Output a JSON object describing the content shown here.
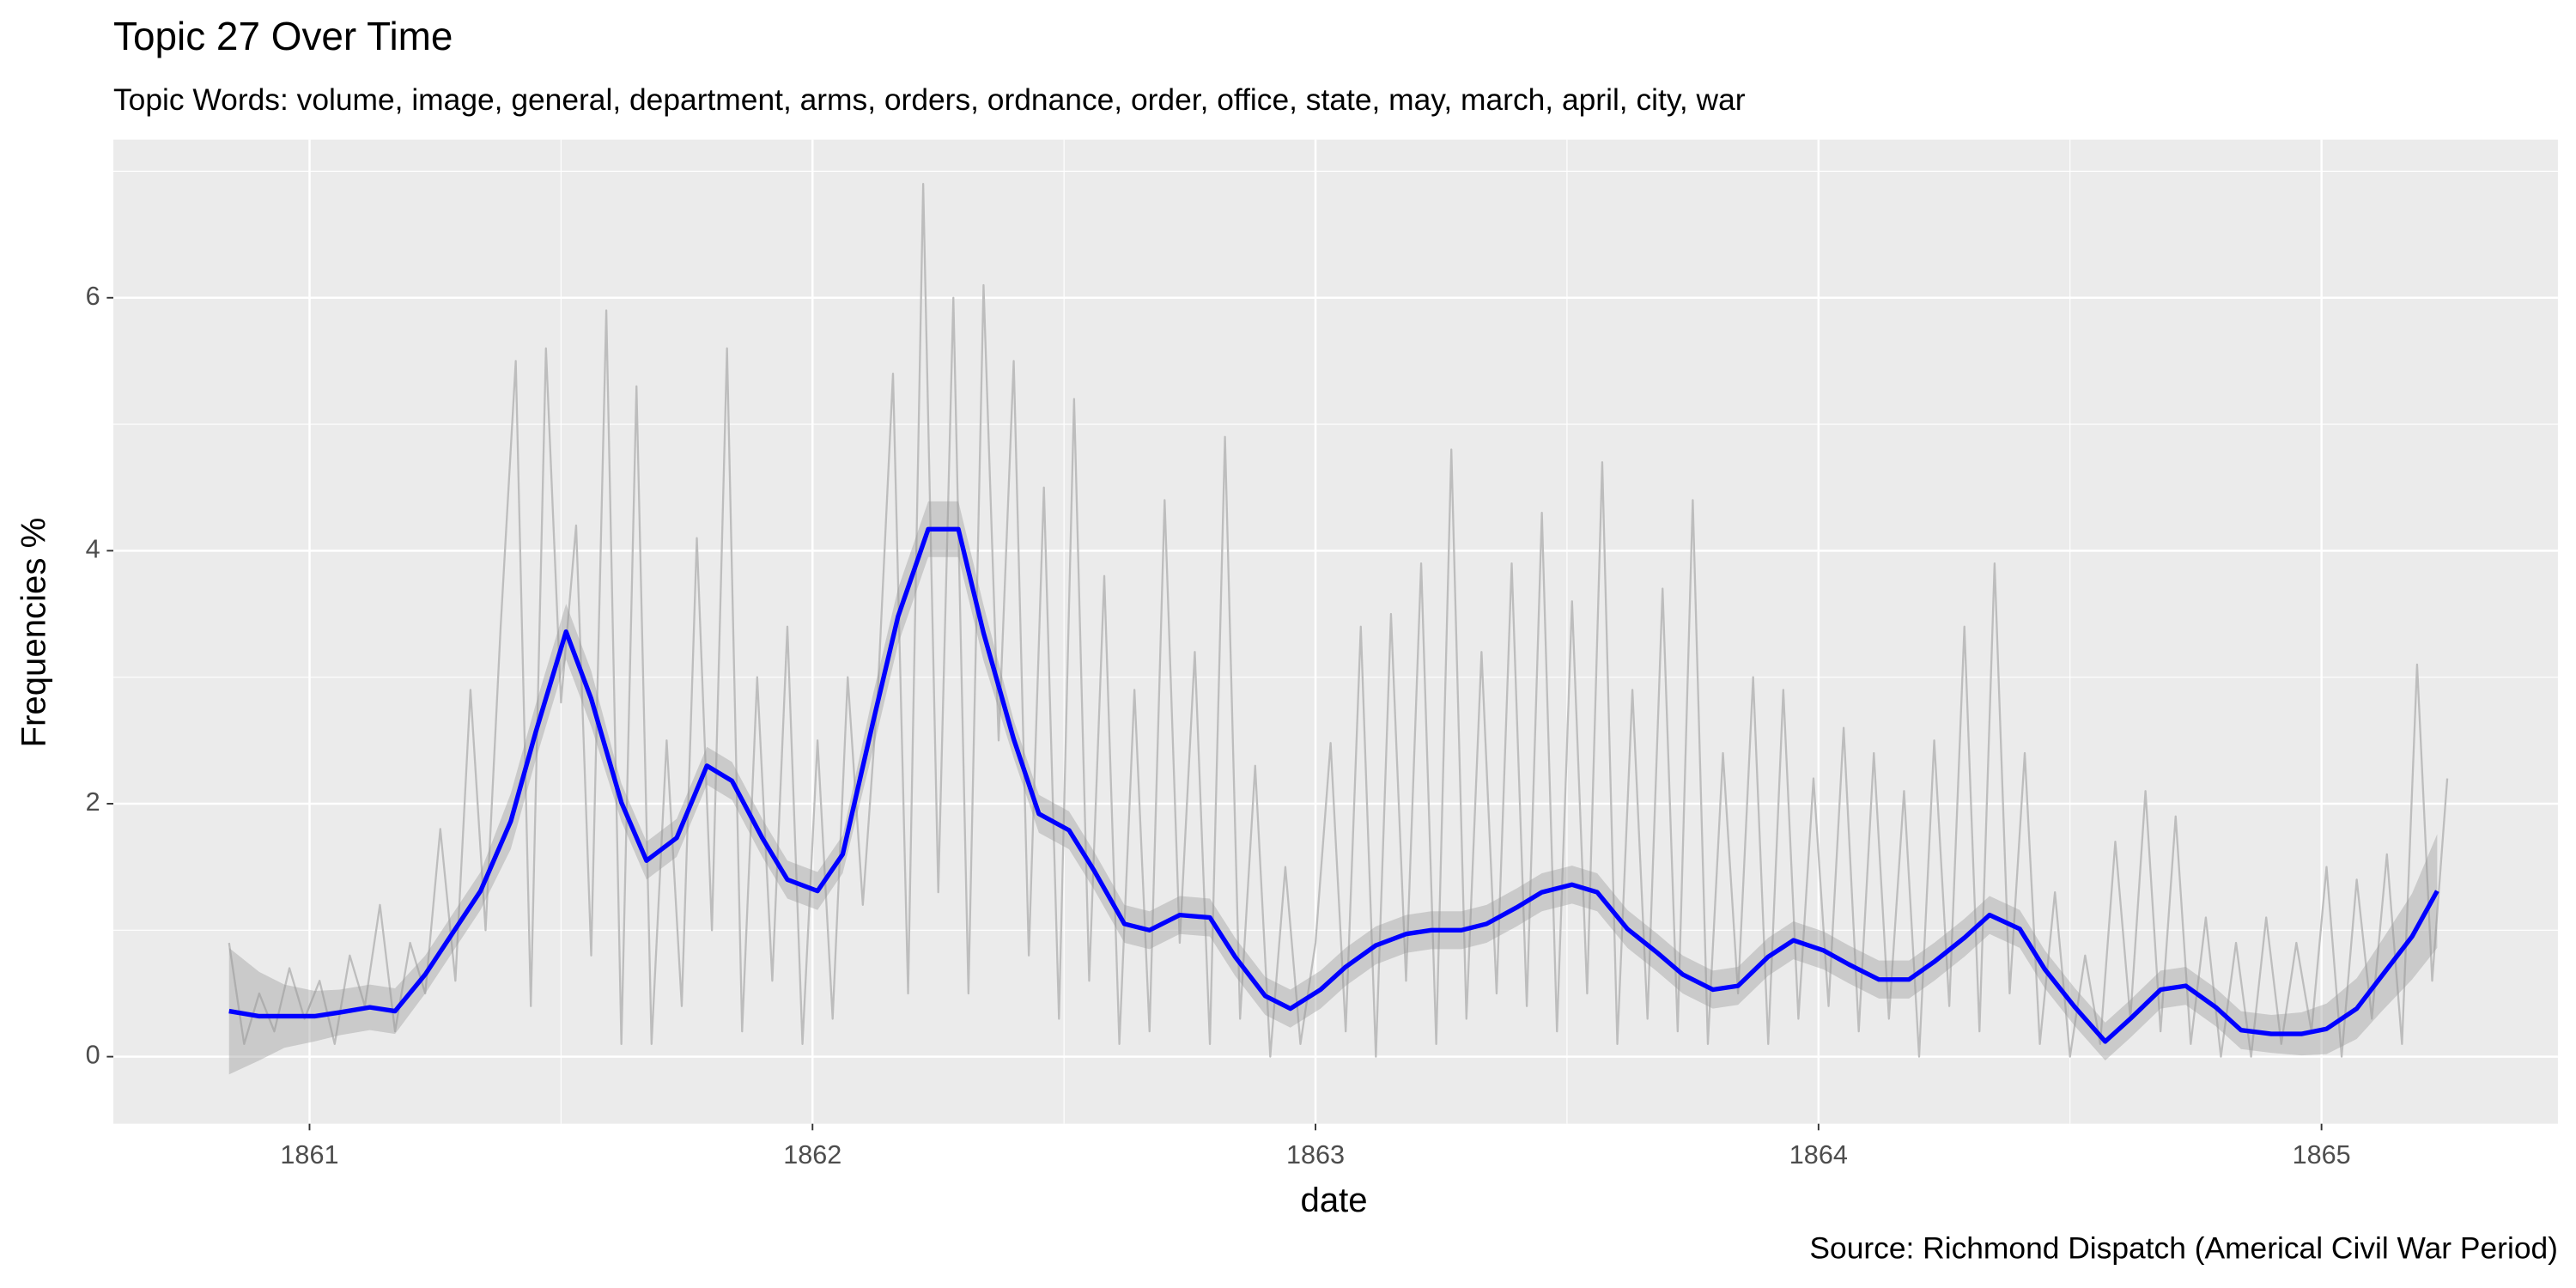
{
  "chart_data": {
    "type": "line",
    "title": "Topic 27 Over Time",
    "subtitle": "Topic Words: volume, image, general, department, arms, orders, ordnance, order, office, state, may, march, april, city, war",
    "caption": "Source: Richmond Dispatch (Americal Civil War Period)",
    "x_label": "date",
    "y_label": "Frequencies %",
    "xlim": [
      1860.61,
      1865.47
    ],
    "ylim": [
      -0.53,
      7.25
    ],
    "xticks": [
      1861,
      1862,
      1863,
      1864,
      1865
    ],
    "yticks": [
      0,
      2,
      4,
      6
    ],
    "x_minor_grid": [
      1861.5,
      1862.5,
      1863.5,
      1864.5
    ],
    "y_minor_grid": [
      1,
      3,
      5,
      7
    ],
    "grid": true,
    "series": [
      {
        "color": "#bdbdbd",
        "x": [
          1860.84,
          1860.87,
          1860.9,
          1860.93,
          1860.96,
          1860.99,
          1861.02,
          1861.05,
          1861.08,
          1861.11,
          1861.14,
          1861.17,
          1861.2,
          1861.23,
          1861.26,
          1861.29,
          1861.32,
          1861.35,
          1861.38,
          1861.41,
          1861.44,
          1861.47,
          1861.5,
          1861.53,
          1861.56,
          1861.59,
          1861.62,
          1861.65,
          1861.68,
          1861.71,
          1861.74,
          1861.77,
          1861.8,
          1861.83,
          1861.86,
          1861.89,
          1861.92,
          1861.95,
          1861.98,
          1862.01,
          1862.04,
          1862.07,
          1862.1,
          1862.13,
          1862.16,
          1862.19,
          1862.22,
          1862.25,
          1862.28,
          1862.31,
          1862.34,
          1862.37,
          1862.4,
          1862.43,
          1862.46,
          1862.49,
          1862.52,
          1862.55,
          1862.58,
          1862.61,
          1862.64,
          1862.67,
          1862.7,
          1862.73,
          1862.76,
          1862.79,
          1862.82,
          1862.85,
          1862.88,
          1862.91,
          1862.94,
          1862.97,
          1863.0,
          1863.03,
          1863.06,
          1863.09,
          1863.12,
          1863.15,
          1863.18,
          1863.21,
          1863.24,
          1863.27,
          1863.3,
          1863.33,
          1863.36,
          1863.39,
          1863.42,
          1863.45,
          1863.48,
          1863.51,
          1863.54,
          1863.57,
          1863.6,
          1863.63,
          1863.66,
          1863.69,
          1863.72,
          1863.75,
          1863.78,
          1863.81,
          1863.84,
          1863.87,
          1863.9,
          1863.93,
          1863.96,
          1863.99,
          1864.02,
          1864.05,
          1864.08,
          1864.11,
          1864.14,
          1864.17,
          1864.2,
          1864.23,
          1864.26,
          1864.29,
          1864.32,
          1864.35,
          1864.38,
          1864.41,
          1864.44,
          1864.47,
          1864.5,
          1864.53,
          1864.56,
          1864.59,
          1864.62,
          1864.65,
          1864.68,
          1864.71,
          1864.74,
          1864.77,
          1864.8,
          1864.83,
          1864.86,
          1864.89,
          1864.92,
          1864.95,
          1864.98,
          1865.01,
          1865.04,
          1865.07,
          1865.1,
          1865.13,
          1865.16,
          1865.19,
          1865.22,
          1865.25
        ],
        "values": [
          0.9,
          0.1,
          0.5,
          0.2,
          0.7,
          0.3,
          0.6,
          0.1,
          0.8,
          0.4,
          1.2,
          0.2,
          0.9,
          0.5,
          1.8,
          0.6,
          2.9,
          1.0,
          3.4,
          5.5,
          0.4,
          5.6,
          2.8,
          4.2,
          0.8,
          5.9,
          0.1,
          5.3,
          0.1,
          2.5,
          0.4,
          4.1,
          1.0,
          5.6,
          0.2,
          3.0,
          0.6,
          3.4,
          0.1,
          2.5,
          0.3,
          3.0,
          1.2,
          2.9,
          5.4,
          0.5,
          6.9,
          1.3,
          6.0,
          0.5,
          6.1,
          2.5,
          5.5,
          0.8,
          4.5,
          0.3,
          5.2,
          0.6,
          3.8,
          0.1,
          2.9,
          0.2,
          4.4,
          0.9,
          3.2,
          0.1,
          4.9,
          0.3,
          2.3,
          0.0,
          1.5,
          0.1,
          0.9,
          2.48,
          0.2,
          3.4,
          0.0,
          3.5,
          0.6,
          3.9,
          0.1,
          4.8,
          0.3,
          3.2,
          0.5,
          3.9,
          0.4,
          4.3,
          0.2,
          3.6,
          0.5,
          4.7,
          0.1,
          2.9,
          0.3,
          3.7,
          0.2,
          4.4,
          0.1,
          2.4,
          0.5,
          3.0,
          0.1,
          2.9,
          0.3,
          2.2,
          0.4,
          2.6,
          0.2,
          2.4,
          0.3,
          2.1,
          0.0,
          2.5,
          0.4,
          3.4,
          0.2,
          3.9,
          0.5,
          2.4,
          0.1,
          1.3,
          0.0,
          0.8,
          0.1,
          1.7,
          0.3,
          2.1,
          0.2,
          1.9,
          0.1,
          1.1,
          0.0,
          0.9,
          0.0,
          1.1,
          0.1,
          0.9,
          0.2,
          1.5,
          0.0,
          1.4,
          0.3,
          1.6,
          0.1,
          3.1,
          0.6,
          2.2
        ]
      },
      {
        "color": "#0000ff",
        "band_color": "#999999",
        "x": [
          1860.84,
          1860.9,
          1860.95,
          1861.01,
          1861.06,
          1861.12,
          1861.17,
          1861.23,
          1861.28,
          1861.34,
          1861.4,
          1861.45,
          1861.51,
          1861.56,
          1861.62,
          1861.67,
          1861.73,
          1861.79,
          1861.84,
          1861.9,
          1861.95,
          1862.01,
          1862.06,
          1862.12,
          1862.17,
          1862.23,
          1862.29,
          1862.34,
          1862.4,
          1862.45,
          1862.51,
          1862.56,
          1862.62,
          1862.67,
          1862.73,
          1862.79,
          1862.84,
          1862.9,
          1862.95,
          1863.01,
          1863.06,
          1863.12,
          1863.18,
          1863.23,
          1863.29,
          1863.34,
          1863.4,
          1863.45,
          1863.51,
          1863.56,
          1863.62,
          1863.68,
          1863.73,
          1863.79,
          1863.84,
          1863.9,
          1863.95,
          1864.01,
          1864.06,
          1864.12,
          1864.18,
          1864.23,
          1864.29,
          1864.34,
          1864.4,
          1864.45,
          1864.51,
          1864.57,
          1864.62,
          1864.68,
          1864.73,
          1864.79,
          1864.84,
          1864.9,
          1864.96,
          1865.01,
          1865.07,
          1865.12,
          1865.18,
          1865.23
        ],
        "values": [
          0.36,
          0.32,
          0.32,
          0.32,
          0.35,
          0.39,
          0.36,
          0.65,
          0.95,
          1.31,
          1.86,
          2.57,
          3.36,
          2.83,
          2.01,
          1.55,
          1.73,
          2.3,
          2.18,
          1.73,
          1.4,
          1.31,
          1.6,
          2.64,
          3.48,
          4.17,
          4.17,
          3.35,
          2.51,
          1.92,
          1.79,
          1.47,
          1.05,
          1.0,
          1.12,
          1.1,
          0.79,
          0.48,
          0.38,
          0.53,
          0.71,
          0.88,
          0.97,
          1.0,
          1.0,
          1.05,
          1.18,
          1.3,
          1.36,
          1.3,
          1.01,
          0.82,
          0.65,
          0.53,
          0.56,
          0.79,
          0.92,
          0.84,
          0.73,
          0.61,
          0.61,
          0.75,
          0.94,
          1.12,
          1.01,
          0.69,
          0.39,
          0.12,
          0.3,
          0.53,
          0.56,
          0.39,
          0.21,
          0.18,
          0.18,
          0.22,
          0.38,
          0.64,
          0.95,
          1.31
        ],
        "lower": [
          -0.14,
          -0.03,
          0.07,
          0.12,
          0.17,
          0.21,
          0.18,
          0.5,
          0.8,
          1.16,
          1.64,
          2.35,
          3.14,
          2.61,
          1.86,
          1.4,
          1.58,
          2.15,
          2.03,
          1.58,
          1.25,
          1.16,
          1.45,
          2.42,
          3.26,
          3.95,
          3.95,
          3.13,
          2.36,
          1.77,
          1.64,
          1.32,
          0.9,
          0.85,
          0.97,
          0.95,
          0.64,
          0.33,
          0.23,
          0.38,
          0.56,
          0.73,
          0.82,
          0.85,
          0.85,
          0.9,
          1.03,
          1.15,
          1.21,
          1.15,
          0.86,
          0.67,
          0.5,
          0.38,
          0.41,
          0.64,
          0.77,
          0.69,
          0.58,
          0.46,
          0.46,
          0.6,
          0.79,
          0.97,
          0.86,
          0.54,
          0.24,
          -0.03,
          0.15,
          0.38,
          0.41,
          0.24,
          0.06,
          0.03,
          0.01,
          0.02,
          0.14,
          0.36,
          0.61,
          0.86
        ],
        "upper": [
          0.86,
          0.67,
          0.57,
          0.52,
          0.53,
          0.57,
          0.54,
          0.8,
          1.1,
          1.46,
          2.08,
          2.79,
          3.58,
          3.05,
          2.16,
          1.7,
          1.88,
          2.45,
          2.33,
          1.88,
          1.55,
          1.46,
          1.75,
          2.86,
          3.7,
          4.39,
          4.39,
          3.57,
          2.66,
          2.07,
          1.94,
          1.62,
          1.2,
          1.15,
          1.27,
          1.25,
          0.94,
          0.63,
          0.53,
          0.68,
          0.86,
          1.03,
          1.12,
          1.15,
          1.15,
          1.2,
          1.33,
          1.45,
          1.51,
          1.45,
          1.16,
          0.97,
          0.8,
          0.68,
          0.71,
          0.94,
          1.07,
          0.99,
          0.88,
          0.76,
          0.76,
          0.9,
          1.09,
          1.27,
          1.16,
          0.84,
          0.54,
          0.27,
          0.45,
          0.68,
          0.71,
          0.54,
          0.36,
          0.33,
          0.35,
          0.42,
          0.62,
          0.92,
          1.29,
          1.76
        ]
      }
    ]
  }
}
